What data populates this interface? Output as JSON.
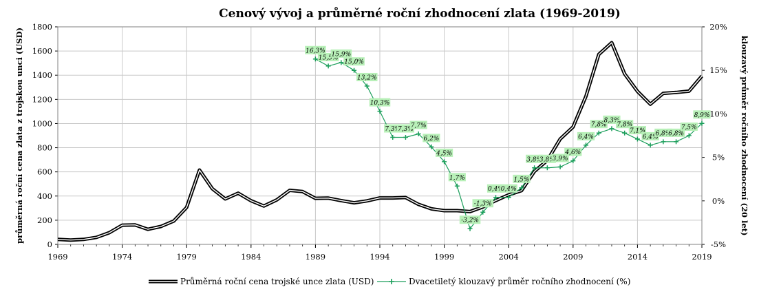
{
  "chart_data": {
    "type": "line",
    "title": "Cenový vývoj a průměrné roční zhodnocení zlata (1969-2019)",
    "ylabel": "průměrná roční cena zlata z trojskou unci (USD)",
    "y2label": "klouzavý průměr ročního zhodnocení (20 let)",
    "xlim": [
      1969,
      2019
    ],
    "ylim": [
      0,
      1800
    ],
    "y2lim": [
      -5,
      20
    ],
    "x_ticks": [
      "1969",
      "1974",
      "1979",
      "1984",
      "1989",
      "1994",
      "1999",
      "2004",
      "2009",
      "2014",
      "2019"
    ],
    "y_ticks": [
      "0",
      "200",
      "400",
      "600",
      "800",
      "1000",
      "1200",
      "1400",
      "1600",
      "1800"
    ],
    "y2_ticks": [
      "-5%",
      "0%",
      "5%",
      "10%",
      "15%",
      "20%"
    ],
    "grid": true,
    "legend_position": "bottom",
    "colors": {
      "price": "#000000",
      "avg": "#1a9e5a",
      "label_bg": "#b8f0b8"
    },
    "series": [
      {
        "name": "Průměrná roční cena trojské unce zlata (USD)",
        "axis": "left",
        "x": [
          1969,
          1970,
          1971,
          1972,
          1973,
          1974,
          1975,
          1976,
          1977,
          1978,
          1979,
          1980,
          1981,
          1982,
          1983,
          1984,
          1985,
          1986,
          1987,
          1988,
          1989,
          1990,
          1991,
          1992,
          1993,
          1994,
          1995,
          1996,
          1997,
          1998,
          1999,
          2000,
          2001,
          2002,
          2003,
          2004,
          2005,
          2006,
          2007,
          2008,
          2009,
          2010,
          2011,
          2012,
          2013,
          2014,
          2015,
          2016,
          2017,
          2018,
          2019
        ],
        "values": [
          41,
          36,
          41,
          58,
          97,
          159,
          161,
          125,
          148,
          193,
          306,
          615,
          460,
          376,
          424,
          361,
          317,
          368,
          447,
          437,
          381,
          383,
          362,
          344,
          360,
          384,
          384,
          388,
          331,
          294,
          279,
          279,
          271,
          310,
          363,
          410,
          445,
          604,
          695,
          872,
          972,
          1225,
          1572,
          1669,
          1411,
          1266,
          1160,
          1250,
          1257,
          1268,
          1393
        ]
      },
      {
        "name": "Dvacetiletý klouzavý průměr ročního zhodnocení (%)",
        "axis": "right",
        "x": [
          1989,
          1990,
          1991,
          1992,
          1993,
          1994,
          1995,
          1996,
          1997,
          1998,
          1999,
          2000,
          2001,
          2002,
          2003,
          2004,
          2005,
          2006,
          2007,
          2008,
          2009,
          2010,
          2011,
          2012,
          2013,
          2014,
          2015,
          2016,
          2017,
          2018,
          2019
        ],
        "values": [
          16.3,
          15.5,
          15.9,
          15.0,
          13.2,
          10.3,
          7.3,
          7.3,
          7.7,
          6.2,
          4.5,
          1.7,
          -3.2,
          -1.3,
          0.4,
          0.4,
          1.5,
          3.8,
          3.8,
          3.9,
          4.6,
          6.4,
          7.8,
          8.3,
          7.8,
          7.1,
          6.4,
          6.8,
          6.8,
          7.5,
          8.9
        ],
        "labels": [
          "16,3%",
          "15,5%",
          "15,9%",
          "15,0%",
          "13,2%",
          "10,3%",
          "7,3%",
          "7,3%",
          "7,7%",
          "6,2%",
          "4,5%",
          "1,7%",
          "-3,2%",
          "-1,3%",
          "0,4%",
          "0,4%",
          "1,5%",
          "3,8%",
          "3,8%",
          "3,9%",
          "4,6%",
          "6,4%",
          "7,8%",
          "8,3%",
          "7,8%",
          "7,1%",
          "6,4%",
          "6,8%",
          "6,8%",
          "7,5%",
          "8,9%"
        ]
      }
    ]
  }
}
